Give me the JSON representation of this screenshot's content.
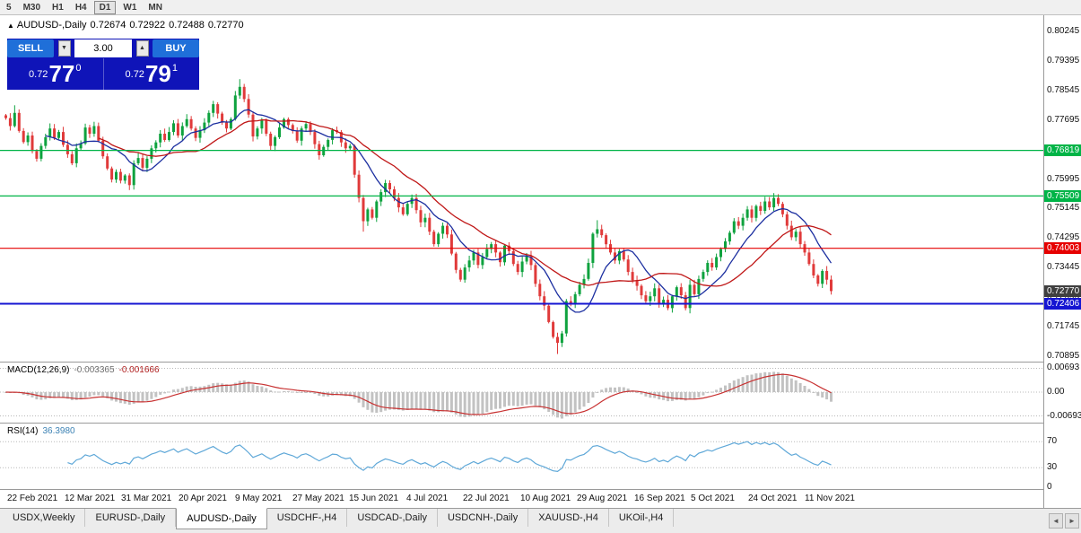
{
  "toolbar": {
    "periods": [
      "5",
      "M30",
      "H1",
      "H4",
      "D1",
      "W1",
      "MN"
    ],
    "active": "D1"
  },
  "icons": {
    "collapse_marker": "▲",
    "spin_up": "▲",
    "spin_down": "▼",
    "tab_scroll_left": "◄",
    "tab_scroll_right": "►"
  },
  "chart": {
    "symbol": "AUDUSD-,Daily",
    "open": "0.72674",
    "high": "0.72922",
    "low": "0.72488",
    "close": "0.72770"
  },
  "trade_panel": {
    "sell_label": "SELL",
    "buy_label": "BUY",
    "lot": "3.00",
    "bid": {
      "prefix": "0.72",
      "big": "77",
      "sup": "0"
    },
    "ask": {
      "prefix": "0.72",
      "big": "79",
      "sup": "1"
    }
  },
  "colors": {
    "panel_blue": "#0F14B8",
    "button_blue": "#1F6FD9",
    "up_candle": "#0EA23E",
    "down_candle": "#E03A3A",
    "ma_fast": "#1C2FA0",
    "ma_slow": "#C01818",
    "hline_green": "#00B447",
    "hline_red": "#E60000",
    "hline_blue": "#1515D2",
    "current_tag": "#3F3F3F",
    "macd_hist": "#C2C2C2",
    "macd_signal": "#C83232",
    "rsi_line": "#5FA8D8"
  },
  "tabs": {
    "items": [
      "USDX,Weekly",
      "EURUSD-,Daily",
      "AUDUSD-,Daily",
      "USDCHF-,H4",
      "USDCAD-,Daily",
      "USDCNH-,Daily",
      "XAUUSD-,H4",
      "UKOil-,H4"
    ],
    "active_index": 2
  },
  "chart_data": {
    "type": "candlestick",
    "title": "AUDUSD-,Daily",
    "ohlc_display": {
      "open": "0.72674",
      "high": "0.72922",
      "low": "0.72488",
      "close": "0.72770"
    },
    "y_axis_ticks": [
      "0.80245",
      "0.79395",
      "0.78545",
      "0.77695",
      "0.76845",
      "0.75995",
      "0.75145",
      "0.74295",
      "0.73445",
      "0.72595",
      "0.71745",
      "0.70895"
    ],
    "x_axis_dates": [
      "22 Feb 2021",
      "12 Mar 2021",
      "31 Mar 2021",
      "20 Apr 2021",
      "9 May 2021",
      "27 May 2021",
      "15 Jun 2021",
      "4 Jul 2021",
      "22 Jul 2021",
      "10 Aug 2021",
      "29 Aug 2021",
      "16 Sep 2021",
      "5 Oct 2021",
      "24 Oct 2021",
      "11 Nov 2021"
    ],
    "closes": [
      0.7775,
      0.7752,
      0.779,
      0.7738,
      0.7706,
      0.7725,
      0.768,
      0.7658,
      0.7695,
      0.772,
      0.7745,
      0.7718,
      0.7735,
      0.7698,
      0.7671,
      0.7645,
      0.7688,
      0.7702,
      0.7748,
      0.773,
      0.7752,
      0.771,
      0.7665,
      0.763,
      0.7598,
      0.762,
      0.7595,
      0.761,
      0.7582,
      0.7645,
      0.766,
      0.7632,
      0.7658,
      0.7688,
      0.7705,
      0.773,
      0.7712,
      0.7735,
      0.776,
      0.7725,
      0.7752,
      0.7772,
      0.7745,
      0.7718,
      0.774,
      0.7762,
      0.779,
      0.7815,
      0.7788,
      0.7762,
      0.7745,
      0.7772,
      0.784,
      0.7865,
      0.783,
      0.7785,
      0.7722,
      0.7745,
      0.7768,
      0.773,
      0.7695,
      0.772,
      0.7748,
      0.7772,
      0.7755,
      0.7738,
      0.771,
      0.7745,
      0.7758,
      0.7735,
      0.77,
      0.7668,
      0.7692,
      0.7712,
      0.774,
      0.7735,
      0.7705,
      0.7688,
      0.7695,
      0.7612,
      0.7545,
      0.7478,
      0.7512,
      0.7488,
      0.7535,
      0.7562,
      0.7588,
      0.757,
      0.7545,
      0.7518,
      0.7498,
      0.7528,
      0.7545,
      0.751,
      0.7475,
      0.7488,
      0.7448,
      0.7412,
      0.7442,
      0.7465,
      0.744,
      0.7385,
      0.7338,
      0.731,
      0.7345,
      0.7365,
      0.7388,
      0.7352,
      0.7375,
      0.7398,
      0.7412,
      0.7388,
      0.736,
      0.7408,
      0.7392,
      0.7355,
      0.7332,
      0.7362,
      0.7378,
      0.7352,
      0.7298,
      0.7262,
      0.7235,
      0.7188,
      0.7145,
      0.7128,
      0.7155,
      0.7248,
      0.7239,
      0.7268,
      0.7295,
      0.7312,
      0.7358,
      0.7442,
      0.7455,
      0.7438,
      0.7412,
      0.7388,
      0.7365,
      0.7392,
      0.7368,
      0.7332,
      0.7308,
      0.7292,
      0.7265,
      0.7248,
      0.7262,
      0.7285,
      0.7238,
      0.7252,
      0.7228,
      0.7262,
      0.7288,
      0.7265,
      0.7228,
      0.7295,
      0.7268,
      0.7312,
      0.7332,
      0.7358,
      0.7345,
      0.7375,
      0.7398,
      0.742,
      0.7445,
      0.7478,
      0.7465,
      0.7488,
      0.7512,
      0.7488,
      0.7522,
      0.7508,
      0.7535,
      0.7518,
      0.7545,
      0.7528,
      0.7498,
      0.7465,
      0.7432,
      0.7448,
      0.7412,
      0.7388,
      0.7355,
      0.7322,
      0.7298,
      0.7335,
      0.731,
      0.7277
    ],
    "wick_overrides": [
      {
        "index": 2,
        "upper": 0.0022
      },
      {
        "index": 53,
        "upper": 0.0022
      },
      {
        "index": 81,
        "lower": 0.003
      },
      {
        "index": 125,
        "lower": 0.0032
      },
      {
        "index": 134,
        "upper": 0.0026
      },
      {
        "index": 174,
        "upper": 0.0014
      }
    ],
    "hlines": [
      {
        "value": 0.76819,
        "label": "0.76819",
        "color": "#00B447",
        "width": 1.2
      },
      {
        "value": 0.75509,
        "label": "0.75509",
        "color": "#00B447",
        "width": 1.2
      },
      {
        "value": 0.74003,
        "label": "0.74003",
        "color": "#E60000",
        "width": 1.2
      },
      {
        "value": 0.72406,
        "label": "0.72406",
        "color": "#1515D2",
        "width": 2
      }
    ],
    "current_price": {
      "value": 0.7277,
      "label": "0.72770",
      "color": "#3F3F3F"
    },
    "moving_averages": [
      {
        "name": "fast",
        "period": 10,
        "color": "#1C2FA0"
      },
      {
        "name": "slow",
        "period": 22,
        "color": "#C01818"
      }
    ],
    "indicators": {
      "macd": {
        "label": "MACD(12,26,9)",
        "main_value": "-0.003365",
        "signal_value": "-0.001666",
        "axis_ticks": [
          "0.00693",
          "0.00",
          "-0.00693"
        ],
        "ymax": 0.00693
      },
      "rsi": {
        "label": "RSI(14)",
        "value": "36.3980",
        "axis_ticks": [
          "70",
          "30",
          "0"
        ],
        "levels": [
          70,
          30
        ]
      }
    }
  }
}
